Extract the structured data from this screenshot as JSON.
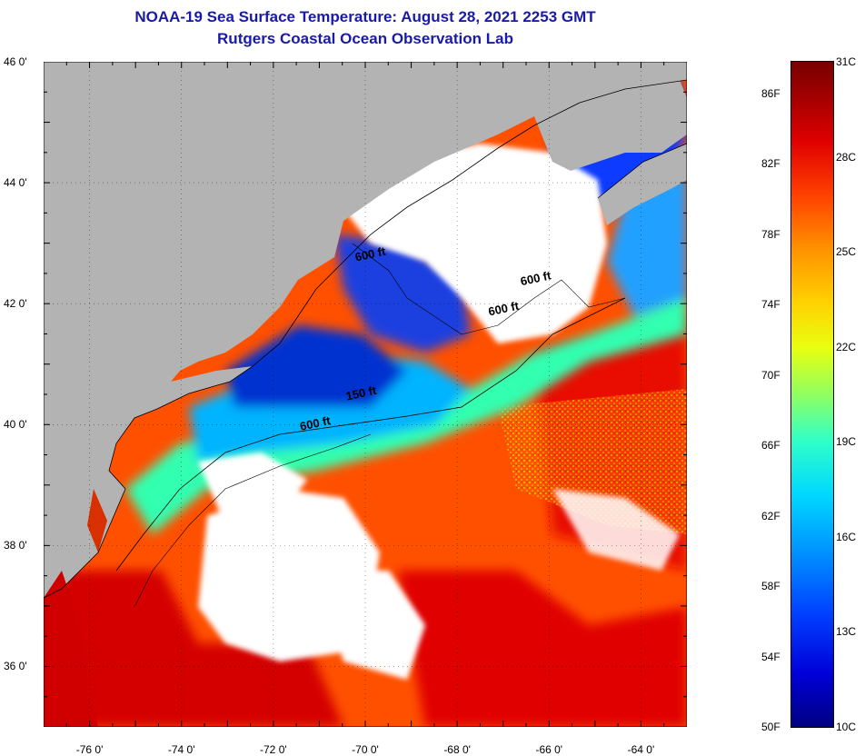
{
  "header": {
    "title": "NOAA-19 Sea Surface Temperature:  August 28, 2021 2253 GMT",
    "subtitle": "Rutgers Coastal Ocean Observation Lab"
  },
  "map": {
    "lat_range": [
      35,
      46
    ],
    "lon_range": [
      -77,
      -63
    ],
    "lat_labels": [
      "36 0'",
      "38 0'",
      "40 0'",
      "42 0'",
      "44 0'",
      "46 0'"
    ],
    "lat_values": [
      36,
      38,
      40,
      42,
      44,
      46
    ],
    "lon_labels": [
      "-76 0'",
      "-74 0'",
      "-72 0'",
      "-70 0'",
      "-68 0'",
      "-66 0'",
      "-64 0'"
    ],
    "lon_values": [
      -76,
      -74,
      -72,
      -70,
      -68,
      -66,
      -64
    ],
    "contour_labels": [
      {
        "text": "600 ft",
        "lon": -70.2,
        "lat": 42.7
      },
      {
        "text": "600 ft",
        "lon": -66.6,
        "lat": 42.3
      },
      {
        "text": "600 ft",
        "lon": -67.3,
        "lat": 41.8
      },
      {
        "text": "150 ft",
        "lon": -70.4,
        "lat": 40.4
      },
      {
        "text": "600 ft",
        "lon": -71.4,
        "lat": 39.9
      }
    ],
    "colors": {
      "land": "#b3b3b3",
      "cloud": "#ffffff",
      "cold": "#0020c0",
      "cool": "#00c8ff",
      "mild": "#60ff90",
      "warm": "#ff7000",
      "hot": "#e00000"
    }
  },
  "colorbar": {
    "fahrenheit": [
      "86F",
      "82F",
      "78F",
      "74F",
      "70F",
      "66F",
      "62F",
      "58F",
      "54F",
      "50F"
    ],
    "celsius": [
      "31C",
      "28C",
      "25C",
      "22C",
      "19C",
      "16C",
      "13C",
      "10C"
    ]
  }
}
